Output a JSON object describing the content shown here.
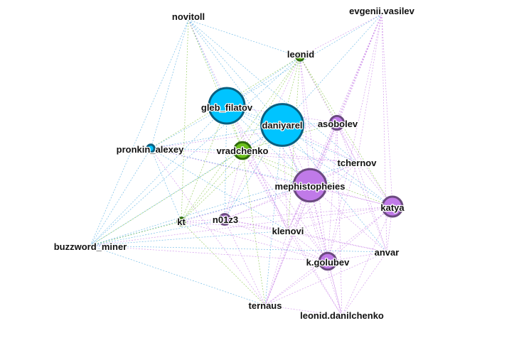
{
  "graph": {
    "title": "",
    "colors": {
      "blue": "#00c4ff",
      "blue_stroke": "#0a5f80",
      "purple": "#c07ae8",
      "purple_stroke": "#6b4a80",
      "green": "#6cc01a",
      "green_stroke": "#2f6b0c",
      "edge_blue": "#4aa8e0",
      "edge_purple": "#c57ce6",
      "edge_green": "#7ec23a"
    },
    "nodes": [
      {
        "id": "novitoll",
        "label": "novitoll",
        "group": "blue",
        "weight": 0
      },
      {
        "id": "evgenii.vasilev",
        "label": "evgenii.vasilev",
        "group": "purple",
        "weight": 0
      },
      {
        "id": "leonid",
        "label": "leonid",
        "group": "green",
        "weight": 1
      },
      {
        "id": "gleb_filatov",
        "label": "gleb_filatov",
        "group": "blue",
        "weight": 10
      },
      {
        "id": "daniyarel",
        "label": "daniyarel",
        "group": "blue",
        "weight": 12
      },
      {
        "id": "asobolev",
        "label": "asobolev",
        "group": "purple",
        "weight": 3
      },
      {
        "id": "pronkin_alexey",
        "label": "pronkin_alexey",
        "group": "blue",
        "weight": 1
      },
      {
        "id": "vradchenko",
        "label": "vradchenko",
        "group": "green",
        "weight": 4
      },
      {
        "id": "tchernov",
        "label": "tchernov",
        "group": "purple",
        "weight": 0
      },
      {
        "id": "mephistopheies",
        "label": "mephistopheies",
        "group": "purple",
        "weight": 9
      },
      {
        "id": "katya",
        "label": "katya",
        "group": "purple",
        "weight": 5
      },
      {
        "id": "kt",
        "label": "kt",
        "group": "green",
        "weight": 1
      },
      {
        "id": "n01z3",
        "label": "n01z3",
        "group": "purple",
        "weight": 2
      },
      {
        "id": "klenovi",
        "label": "klenovi",
        "group": "purple",
        "weight": 0
      },
      {
        "id": "buzzword_miner",
        "label": "buzzword_miner",
        "group": "blue",
        "weight": 0
      },
      {
        "id": "anvar",
        "label": "anvar",
        "group": "purple",
        "weight": 0
      },
      {
        "id": "k.golubev",
        "label": "k.golubev",
        "group": "purple",
        "weight": 4
      },
      {
        "id": "ternaus",
        "label": "ternaus",
        "group": "purple",
        "weight": 0
      },
      {
        "id": "leonid.danilchenko",
        "label": "leonid.danilchenko",
        "group": "purple",
        "weight": 0
      }
    ],
    "edges": [
      [
        "novitoll",
        "leonid"
      ],
      [
        "novitoll",
        "gleb_filatov"
      ],
      [
        "novitoll",
        "daniyarel"
      ],
      [
        "novitoll",
        "vradchenko"
      ],
      [
        "novitoll",
        "pronkin_alexey"
      ],
      [
        "novitoll",
        "buzzword_miner"
      ],
      [
        "novitoll",
        "mephistopheies"
      ],
      [
        "novitoll",
        "kt"
      ],
      [
        "novitoll",
        "tchernov"
      ],
      [
        "novitoll",
        "klenovi"
      ],
      [
        "evgenii.vasilev",
        "leonid"
      ],
      [
        "evgenii.vasilev",
        "daniyarel"
      ],
      [
        "evgenii.vasilev",
        "asobolev"
      ],
      [
        "evgenii.vasilev",
        "mephistopheies"
      ],
      [
        "evgenii.vasilev",
        "katya"
      ],
      [
        "evgenii.vasilev",
        "tchernov"
      ],
      [
        "evgenii.vasilev",
        "anvar"
      ],
      [
        "evgenii.vasilev",
        "k.golubev"
      ],
      [
        "evgenii.vasilev",
        "klenovi"
      ],
      [
        "evgenii.vasilev",
        "gleb_filatov"
      ],
      [
        "evgenii.vasilev",
        "ternaus"
      ],
      [
        "leonid",
        "gleb_filatov"
      ],
      [
        "leonid",
        "daniyarel"
      ],
      [
        "leonid",
        "vradchenko"
      ],
      [
        "leonid",
        "pronkin_alexey"
      ],
      [
        "leonid",
        "buzzword_miner"
      ],
      [
        "leonid",
        "kt"
      ],
      [
        "leonid",
        "mephistopheies"
      ],
      [
        "leonid",
        "asobolev"
      ],
      [
        "leonid",
        "tchernov"
      ],
      [
        "leonid",
        "klenovi"
      ],
      [
        "leonid",
        "k.golubev"
      ],
      [
        "leonid",
        "katya"
      ],
      [
        "leonid",
        "n01z3"
      ],
      [
        "gleb_filatov",
        "daniyarel"
      ],
      [
        "gleb_filatov",
        "vradchenko"
      ],
      [
        "gleb_filatov",
        "pronkin_alexey"
      ],
      [
        "gleb_filatov",
        "buzzword_miner"
      ],
      [
        "gleb_filatov",
        "mephistopheies"
      ],
      [
        "gleb_filatov",
        "kt"
      ],
      [
        "gleb_filatov",
        "n01z3"
      ],
      [
        "gleb_filatov",
        "klenovi"
      ],
      [
        "gleb_filatov",
        "tchernov"
      ],
      [
        "gleb_filatov",
        "asobolev"
      ],
      [
        "gleb_filatov",
        "katya"
      ],
      [
        "gleb_filatov",
        "k.golubev"
      ],
      [
        "daniyarel",
        "vradchenko"
      ],
      [
        "daniyarel",
        "pronkin_alexey"
      ],
      [
        "daniyarel",
        "buzzword_miner"
      ],
      [
        "daniyarel",
        "mephistopheies"
      ],
      [
        "daniyarel",
        "asobolev"
      ],
      [
        "daniyarel",
        "tchernov"
      ],
      [
        "daniyarel",
        "katya"
      ],
      [
        "daniyarel",
        "kt"
      ],
      [
        "daniyarel",
        "n01z3"
      ],
      [
        "daniyarel",
        "klenovi"
      ],
      [
        "daniyarel",
        "anvar"
      ],
      [
        "daniyarel",
        "k.golubev"
      ],
      [
        "daniyarel",
        "ternaus"
      ],
      [
        "daniyarel",
        "leonid.danilchenko"
      ],
      [
        "asobolev",
        "mephistopheies"
      ],
      [
        "asobolev",
        "tchernov"
      ],
      [
        "asobolev",
        "katya"
      ],
      [
        "asobolev",
        "vradchenko"
      ],
      [
        "asobolev",
        "klenovi"
      ],
      [
        "asobolev",
        "k.golubev"
      ],
      [
        "asobolev",
        "anvar"
      ],
      [
        "asobolev",
        "leonid.danilchenko"
      ],
      [
        "asobolev",
        "pronkin_alexey"
      ],
      [
        "asobolev",
        "ternaus"
      ],
      [
        "pronkin_alexey",
        "vradchenko"
      ],
      [
        "pronkin_alexey",
        "buzzword_miner"
      ],
      [
        "pronkin_alexey",
        "mephistopheies"
      ],
      [
        "pronkin_alexey",
        "tchernov"
      ],
      [
        "pronkin_alexey",
        "kt"
      ],
      [
        "pronkin_alexey",
        "katya"
      ],
      [
        "pronkin_alexey",
        "klenovi"
      ],
      [
        "pronkin_alexey",
        "ternaus"
      ],
      [
        "vradchenko",
        "mephistopheies"
      ],
      [
        "vradchenko",
        "tchernov"
      ],
      [
        "vradchenko",
        "kt"
      ],
      [
        "vradchenko",
        "n01z3"
      ],
      [
        "vradchenko",
        "buzzword_miner"
      ],
      [
        "vradchenko",
        "klenovi"
      ],
      [
        "vradchenko",
        "katya"
      ],
      [
        "vradchenko",
        "k.golubev"
      ],
      [
        "vradchenko",
        "ternaus"
      ],
      [
        "vradchenko",
        "leonid.danilchenko"
      ],
      [
        "tchernov",
        "mephistopheies"
      ],
      [
        "tchernov",
        "katya"
      ],
      [
        "tchernov",
        "klenovi"
      ],
      [
        "tchernov",
        "anvar"
      ],
      [
        "tchernov",
        "k.golubev"
      ],
      [
        "tchernov",
        "buzzword_miner"
      ],
      [
        "tchernov",
        "n01z3"
      ],
      [
        "mephistopheies",
        "katya"
      ],
      [
        "mephistopheies",
        "kt"
      ],
      [
        "mephistopheies",
        "n01z3"
      ],
      [
        "mephistopheies",
        "klenovi"
      ],
      [
        "mephistopheies",
        "buzzword_miner"
      ],
      [
        "mephistopheies",
        "anvar"
      ],
      [
        "mephistopheies",
        "k.golubev"
      ],
      [
        "mephistopheies",
        "ternaus"
      ],
      [
        "mephistopheies",
        "leonid.danilchenko"
      ],
      [
        "katya",
        "klenovi"
      ],
      [
        "katya",
        "anvar"
      ],
      [
        "katya",
        "k.golubev"
      ],
      [
        "katya",
        "n01z3"
      ],
      [
        "katya",
        "ternaus"
      ],
      [
        "katya",
        "leonid.danilchenko"
      ],
      [
        "katya",
        "buzzword_miner"
      ],
      [
        "kt",
        "n01z3"
      ],
      [
        "kt",
        "buzzword_miner"
      ],
      [
        "kt",
        "klenovi"
      ],
      [
        "kt",
        "ternaus"
      ],
      [
        "kt",
        "k.golubev"
      ],
      [
        "n01z3",
        "klenovi"
      ],
      [
        "n01z3",
        "buzzword_miner"
      ],
      [
        "n01z3",
        "k.golubev"
      ],
      [
        "n01z3",
        "ternaus"
      ],
      [
        "n01z3",
        "anvar"
      ],
      [
        "klenovi",
        "k.golubev"
      ],
      [
        "klenovi",
        "anvar"
      ],
      [
        "klenovi",
        "ternaus"
      ],
      [
        "klenovi",
        "leonid.danilchenko"
      ],
      [
        "klenovi",
        "buzzword_miner"
      ],
      [
        "buzzword_miner",
        "ternaus"
      ],
      [
        "buzzword_miner",
        "k.golubev"
      ],
      [
        "buzzword_miner",
        "anvar"
      ],
      [
        "anvar",
        "k.golubev"
      ],
      [
        "anvar",
        "ternaus"
      ],
      [
        "anvar",
        "leonid.danilchenko"
      ],
      [
        "k.golubev",
        "ternaus"
      ],
      [
        "k.golubev",
        "leonid.danilchenko"
      ],
      [
        "ternaus",
        "leonid.danilchenko"
      ]
    ]
  }
}
